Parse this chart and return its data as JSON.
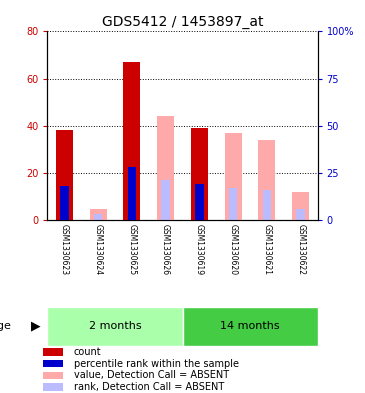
{
  "title": "GDS5412 / 1453897_at",
  "samples": [
    "GSM1330623",
    "GSM1330624",
    "GSM1330625",
    "GSM1330626",
    "GSM1330619",
    "GSM1330620",
    "GSM1330621",
    "GSM1330622"
  ],
  "groups": [
    "2 months",
    "2 months",
    "2 months",
    "2 months",
    "14 months",
    "14 months",
    "14 months",
    "14 months"
  ],
  "red_values": [
    38,
    0,
    67,
    0,
    39,
    0,
    0,
    0
  ],
  "blue_values_pct": [
    18,
    0,
    28,
    0,
    19,
    0,
    0,
    0
  ],
  "pink_values": [
    0,
    4.5,
    0,
    44,
    0,
    37,
    34,
    12
  ],
  "lblue_values_pct": [
    0,
    3,
    0,
    21,
    0,
    17,
    16,
    6
  ],
  "ylim_left": [
    0,
    80
  ],
  "ylim_right": [
    0,
    100
  ],
  "yticks_left": [
    0,
    20,
    40,
    60,
    80
  ],
  "yticks_right": [
    0,
    25,
    50,
    75,
    100
  ],
  "ytick_labels_left": [
    "0",
    "20",
    "40",
    "60",
    "80"
  ],
  "ytick_labels_right": [
    "0",
    "25",
    "50",
    "75",
    "100%"
  ],
  "bar_width": 0.5,
  "red_color": "#cc0000",
  "blue_color": "#0000cc",
  "pink_color": "#ffaaaa",
  "lblue_color": "#bbbbff",
  "age_label": "age",
  "g2m_color": "#aaffaa",
  "g14m_color": "#44cc44",
  "legend_items": [
    {
      "color": "#cc0000",
      "label": "count"
    },
    {
      "color": "#0000cc",
      "label": "percentile rank within the sample"
    },
    {
      "color": "#ffaaaa",
      "label": "value, Detection Call = ABSENT"
    },
    {
      "color": "#bbbbff",
      "label": "rank, Detection Call = ABSENT"
    }
  ],
  "title_fontsize": 10,
  "tick_fontsize": 7,
  "sample_fontsize": 5.5,
  "legend_fontsize": 7,
  "axis_color_left": "#cc0000",
  "axis_color_right": "#0000cc",
  "bg_gray": "#d3d3d3",
  "bg_white": "#ffffff"
}
